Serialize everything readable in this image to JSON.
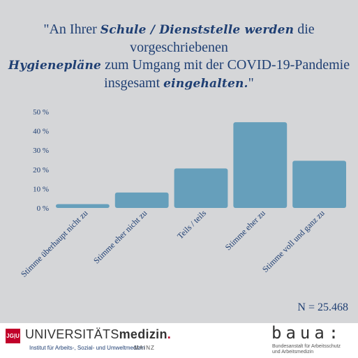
{
  "headline": {
    "open": "\"An Ihrer ",
    "em1": "Schule / Dienststelle werden",
    "mid1": " die vorgeschriebenen",
    "em2": "Hygienepläne",
    "mid2": " zum Umgang mit der COVID-19-Pandemie",
    "mid3": "insgesamt ",
    "em3": "eingehalten.",
    "close": "\""
  },
  "chart_data": {
    "type": "bar",
    "categories": [
      "Stimme überhaupt nicht zu",
      "Stimme eher nicht zu",
      "Teils / teils",
      "Stimme eher zu",
      "Stimme voll und ganz zu"
    ],
    "values": [
      2,
      8,
      20.5,
      44.5,
      24.5
    ],
    "ylim": [
      0,
      50
    ],
    "yticks": [
      "0 %",
      "10 %",
      "20 %",
      "30 %",
      "40 %",
      "50 %"
    ],
    "bar_color": "#669fbb",
    "grid": false
  },
  "n_label": "N = 25.468",
  "footer": {
    "jgu_logo_text": "JG|U",
    "uni_name_regular": "UNIVERSITÄTS",
    "uni_name_bold": "medizin",
    "uni_name_dot": ".",
    "institute": "Institut für Arbeits-, Sozial- und Umweltmedizin",
    "city": "MAINZ",
    "baua_logo": "baua:",
    "baua_line1": "Bundesanstalt für Arbeitsschutz",
    "baua_line2": "und Arbeitsmedizin"
  }
}
